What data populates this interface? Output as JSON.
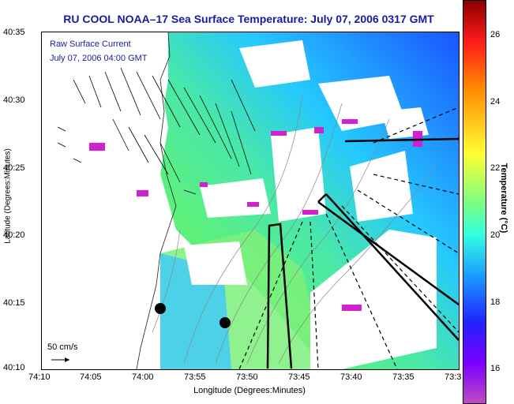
{
  "title": "RU COOL  NOAA–17  Sea Surface Temperature:  July 07, 2006 0317 GMT",
  "overlay": {
    "line1": "Raw Surface Current",
    "line2": "July 07, 2006 04:00 GMT",
    "scale": "50 cm/s"
  },
  "axes": {
    "ylabel": "Latitude (Degrees:Minutes)",
    "xlabel": "Longitude (Degrees:Minutes)",
    "yticks": [
      "40:35",
      "40:30",
      "40:25",
      "40:20",
      "40:15",
      "40:10"
    ],
    "xticks": [
      "74:10",
      "74:05",
      "74:00",
      "73:55",
      "73:50",
      "73:45",
      "73:40",
      "73:35",
      "73:3"
    ]
  },
  "colorbar": {
    "label": "Temperature (°C)",
    "ticks": [
      "26",
      "24",
      "22",
      "20",
      "18",
      "16"
    ]
  }
}
